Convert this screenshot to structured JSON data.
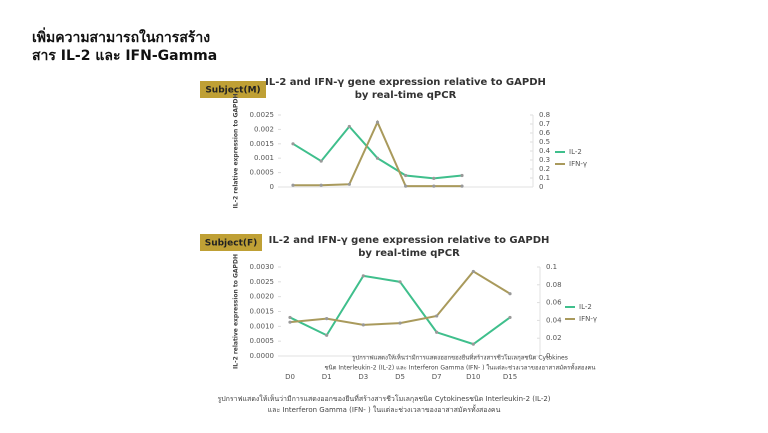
{
  "header": {
    "lines": [
      "เพิ่มความสามารถในการสร้าง",
      "สาร IL-2 และ IFN-Gamma"
    ]
  },
  "subjects": [
    "Subject(M)",
    "Subject(F)"
  ],
  "chart_data": [
    {
      "type": "line",
      "title": "IL-2 and IFN-γ gene expression relative to GAPDH",
      "subtitle": "by real-time qPCR",
      "y_label": "IL-2 relative expression to GAPDH",
      "categories": [
        null,
        null,
        null,
        null,
        null,
        null,
        null
      ],
      "series": [
        {
          "name": "IL-2",
          "color": "#3fbf8c",
          "values": [
            0.0015,
            0.0009,
            0.0021,
            0.001,
            0.0004,
            0.0003,
            0.0004
          ]
        },
        {
          "name": "IFN-γ",
          "color": "#a99a5c",
          "axis": "y2",
          "values": [
            0.02,
            0.02,
            0.03,
            0.72,
            0.01,
            0.01,
            0.01
          ]
        }
      ],
      "ylim": [
        0,
        0.0025
      ],
      "yticks": [
        0,
        0.0005,
        0.001,
        0.0015,
        0.002,
        0.0025
      ],
      "y2lim": [
        0,
        0.8
      ],
      "y2ticks": [
        0,
        0.1,
        0.2,
        0.3,
        0.4,
        0.5,
        0.6,
        0.7,
        0.8
      ]
    },
    {
      "type": "line",
      "title": "IL-2 and IFN-γ gene expression relative to GAPDH",
      "subtitle": "by real-time qPCR",
      "y_label": "IL-2 relative expression to GAPDH",
      "categories": [
        "D0",
        "D1",
        "D3",
        "D5",
        "D7",
        "D10",
        "D15"
      ],
      "series": [
        {
          "name": "IL-2",
          "color": "#3fbf8c",
          "values": [
            0.0013,
            0.0007,
            0.0027,
            0.0025,
            0.0008,
            0.0004,
            0.0013
          ]
        },
        {
          "name": "IFN-γ",
          "color": "#a99a5c",
          "axis": "y2",
          "values": [
            0.038,
            0.042,
            0.035,
            0.037,
            0.045,
            0.095,
            0.07
          ]
        }
      ],
      "ylim": [
        0,
        0.003
      ],
      "yticks": [
        {
          "value": 0,
          "label": "0.0000"
        },
        {
          "value": 0.0005,
          "label": "0.0005"
        },
        {
          "value": 0.001,
          "label": "0.0010"
        },
        {
          "value": 0.0015,
          "label": "0.0015"
        },
        {
          "value": 0.002,
          "label": "0.0020"
        },
        {
          "value": 0.0025,
          "label": "0.0025"
        },
        {
          "value": 0.003,
          "label": "0.0030"
        }
      ],
      "y2lim": [
        0,
        0.1
      ],
      "y2ticks": [
        0,
        0.02,
        0.04,
        0.06,
        0.08,
        0.1
      ],
      "caption": [
        "รูปกราฟแสดงให้เห็นว่ามีการแสดงออกของยีนที่สร้างสารชีวโมเลกุลชนิด Cytokines",
        "ชนิด Interleukin-2 (IL-2) และ Interferon Gamma (IFN- ) ในแต่ละช่วงเวลาของอาสาสมัครทั้งสองคน"
      ]
    }
  ],
  "caption": [
    "รูปกราฟแสดงให้เห็นว่ามีการแสดงออกของยีนที่สร้างสารชีวโมเลกุลชนิด Cytokinesชนิด Interleukin-2 (IL-2)",
    "และ Interferon Gamma (IFN- ) ในแต่ละช่วงเวลาของอาสาสมัครทั้งสองคน"
  ]
}
